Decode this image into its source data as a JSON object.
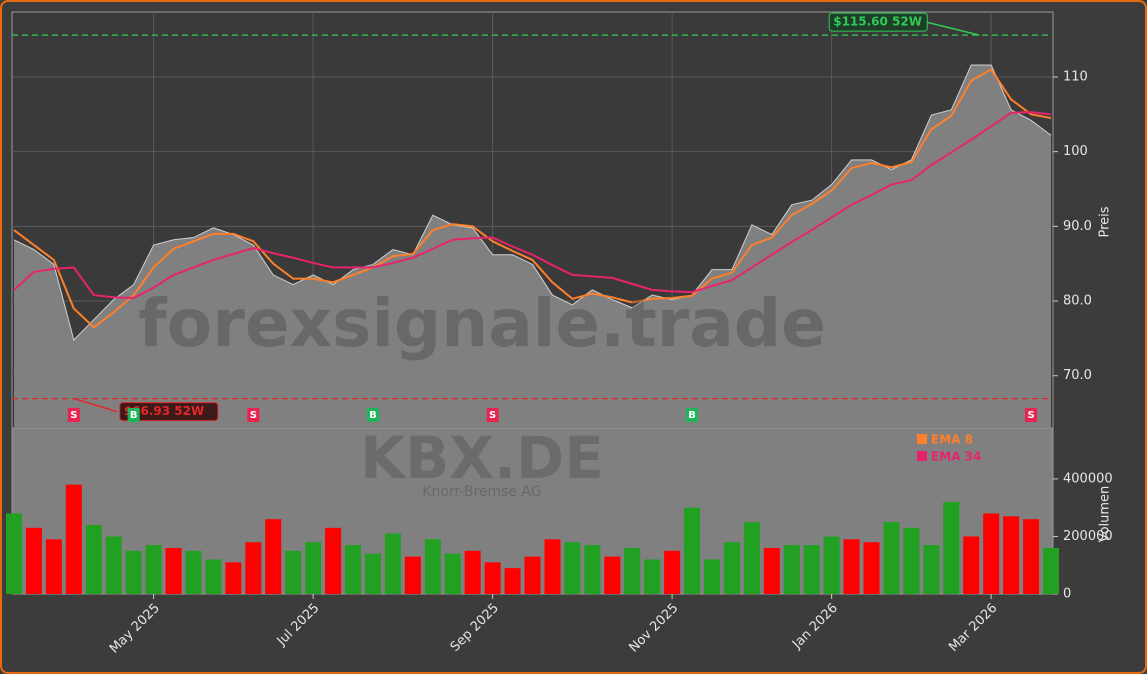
{
  "chart_data": {
    "type": "stock",
    "watermark": "forexsignale.trade",
    "ticker": "KBX.DE",
    "company": "Knorr-Bremse AG",
    "categories": [
      null,
      null,
      null,
      null,
      null,
      null,
      null,
      "May 2025",
      null,
      null,
      null,
      null,
      null,
      null,
      null,
      "Jul 2025",
      null,
      null,
      null,
      null,
      null,
      null,
      null,
      null,
      "Sep 2025",
      null,
      null,
      null,
      null,
      null,
      null,
      null,
      null,
      "Nov 2025",
      null,
      null,
      null,
      null,
      null,
      null,
      null,
      "Jan 2026",
      null,
      null,
      null,
      null,
      null,
      null,
      null,
      "Mar 2026",
      null,
      null,
      null
    ],
    "close": {
      "color": "#ffffff",
      "area_color": "#808080",
      "values": [
        88.2,
        86.9,
        84.9,
        74.8,
        77.5,
        80.2,
        82.2,
        87.5,
        88.2,
        88.5,
        89.8,
        88.9,
        87.5,
        83.5,
        82.2,
        83.5,
        82.2,
        84.2,
        84.9,
        86.9,
        86.2,
        91.5,
        90.2,
        89.8,
        86.2,
        86.2,
        84.9,
        80.8,
        79.5,
        81.5,
        80.2,
        79.1,
        80.8,
        80.2,
        80.8,
        84.2,
        84.2,
        90.2,
        88.9,
        92.9,
        93.5,
        95.6,
        98.9,
        98.9,
        97.6,
        98.9,
        104.9,
        105.6,
        111.6,
        111.6,
        105.6,
        104.2,
        102.2
      ]
    },
    "series": [
      {
        "name": "EMA 8",
        "color": "#ff7f2a",
        "values": [
          89.5,
          87.5,
          85.5,
          79,
          76.5,
          78.5,
          80.8,
          84.5,
          87,
          88,
          89,
          89,
          88,
          85,
          83,
          83,
          82.5,
          83.5,
          84.5,
          86,
          86.3,
          89.5,
          90.3,
          90,
          88,
          86.7,
          85.5,
          82.5,
          80.3,
          81,
          80.5,
          79.8,
          80.3,
          80.4,
          80.7,
          83,
          83.8,
          87.5,
          88.5,
          91.5,
          93,
          94.8,
          97.8,
          98.5,
          97.9,
          98.6,
          103,
          104.8,
          109.5,
          111,
          107,
          105,
          104.5
        ]
      },
      {
        "name": "EMA 34",
        "color": "#e8236e",
        "values": [
          81.5,
          83.9,
          84.3,
          84.5,
          80.8,
          80.5,
          80.4,
          81.8,
          83.5,
          84.5,
          85.5,
          86.3,
          87.1,
          86.4,
          85.8,
          85.1,
          84.5,
          84.5,
          84.5,
          85.1,
          85.8,
          87,
          88.2,
          88.4,
          88.5,
          87.3,
          86.2,
          84.8,
          83.5,
          83.3,
          83.1,
          82.3,
          81.5,
          81.3,
          81.2,
          82,
          82.8,
          84.5,
          86.2,
          87.9,
          89.5,
          91.2,
          92.9,
          94.2,
          95.6,
          96.2,
          98.2,
          99.9,
          101.6,
          103.4,
          105.2,
          105.3,
          105
        ]
      }
    ],
    "signals": [
      null,
      null,
      null,
      "S",
      null,
      null,
      "B",
      null,
      null,
      null,
      null,
      null,
      "S",
      null,
      null,
      null,
      null,
      null,
      "B",
      null,
      null,
      null,
      null,
      null,
      "S",
      null,
      null,
      null,
      null,
      null,
      null,
      null,
      null,
      null,
      "B",
      null,
      null,
      null,
      null,
      null,
      null,
      null,
      null,
      null,
      null,
      null,
      null,
      null,
      null,
      null,
      null,
      "S",
      null
    ],
    "signal_colors": {
      "S": "#e8234f",
      "B": "#1fb35a"
    },
    "annotations": [
      {
        "value": 115.6,
        "label": "$115.60 52W",
        "color": "#2ecc55"
      },
      {
        "value": 66.93,
        "label": "$66.93 52W",
        "color": "#e02828"
      }
    ],
    "ylabel": "Preis",
    "ylim": [
      63,
      118.7
    ],
    "yticks": [
      {
        "value": 70,
        "label": "70.0"
      },
      {
        "value": 80,
        "label": "80.0"
      },
      {
        "value": 90,
        "label": "90.0"
      },
      100,
      110
    ],
    "volume": {
      "ylabel": "Volumen",
      "ylim": [
        0,
        577000
      ],
      "yticks": [
        0,
        200000,
        400000
      ],
      "values": [
        280000,
        230000,
        190000,
        380000,
        240000,
        200000,
        150000,
        170000,
        160000,
        150000,
        120000,
        110000,
        180000,
        260000,
        150000,
        180000,
        230000,
        170000,
        140000,
        210000,
        130000,
        190000,
        140000,
        150000,
        110000,
        90000,
        130000,
        190000,
        180000,
        170000,
        130000,
        160000,
        120000,
        150000,
        300000,
        120000,
        180000,
        250000,
        160000,
        170000,
        170000,
        200000,
        190000,
        180000,
        250000,
        230000,
        170000,
        320000,
        200000,
        280000,
        270000,
        260000,
        160000
      ],
      "colors": [
        "#22a022",
        "#ff0000",
        "#ff0000",
        "#ff0000",
        "#22a022",
        "#22a022",
        "#22a022",
        "#22a022",
        "#ff0000",
        "#22a022",
        "#22a022",
        "#ff0000",
        "#ff0000",
        "#ff0000",
        "#22a022",
        "#22a022",
        "#ff0000",
        "#22a022",
        "#22a022",
        "#22a022",
        "#ff0000",
        "#22a022",
        "#22a022",
        "#ff0000",
        "#ff0000",
        "#ff0000",
        "#ff0000",
        "#ff0000",
        "#22a022",
        "#22a022",
        "#ff0000",
        "#22a022",
        "#22a022",
        "#ff0000",
        "#22a022",
        "#22a022",
        "#22a022",
        "#22a022",
        "#ff0000",
        "#22a022",
        "#22a022",
        "#22a022",
        "#ff0000",
        "#ff0000",
        "#22a022",
        "#22a022",
        "#22a022",
        "#22a022",
        "#ff0000",
        "#ff0000",
        "#ff0000",
        "#ff0000",
        "#22a022"
      ]
    },
    "grid": true
  }
}
